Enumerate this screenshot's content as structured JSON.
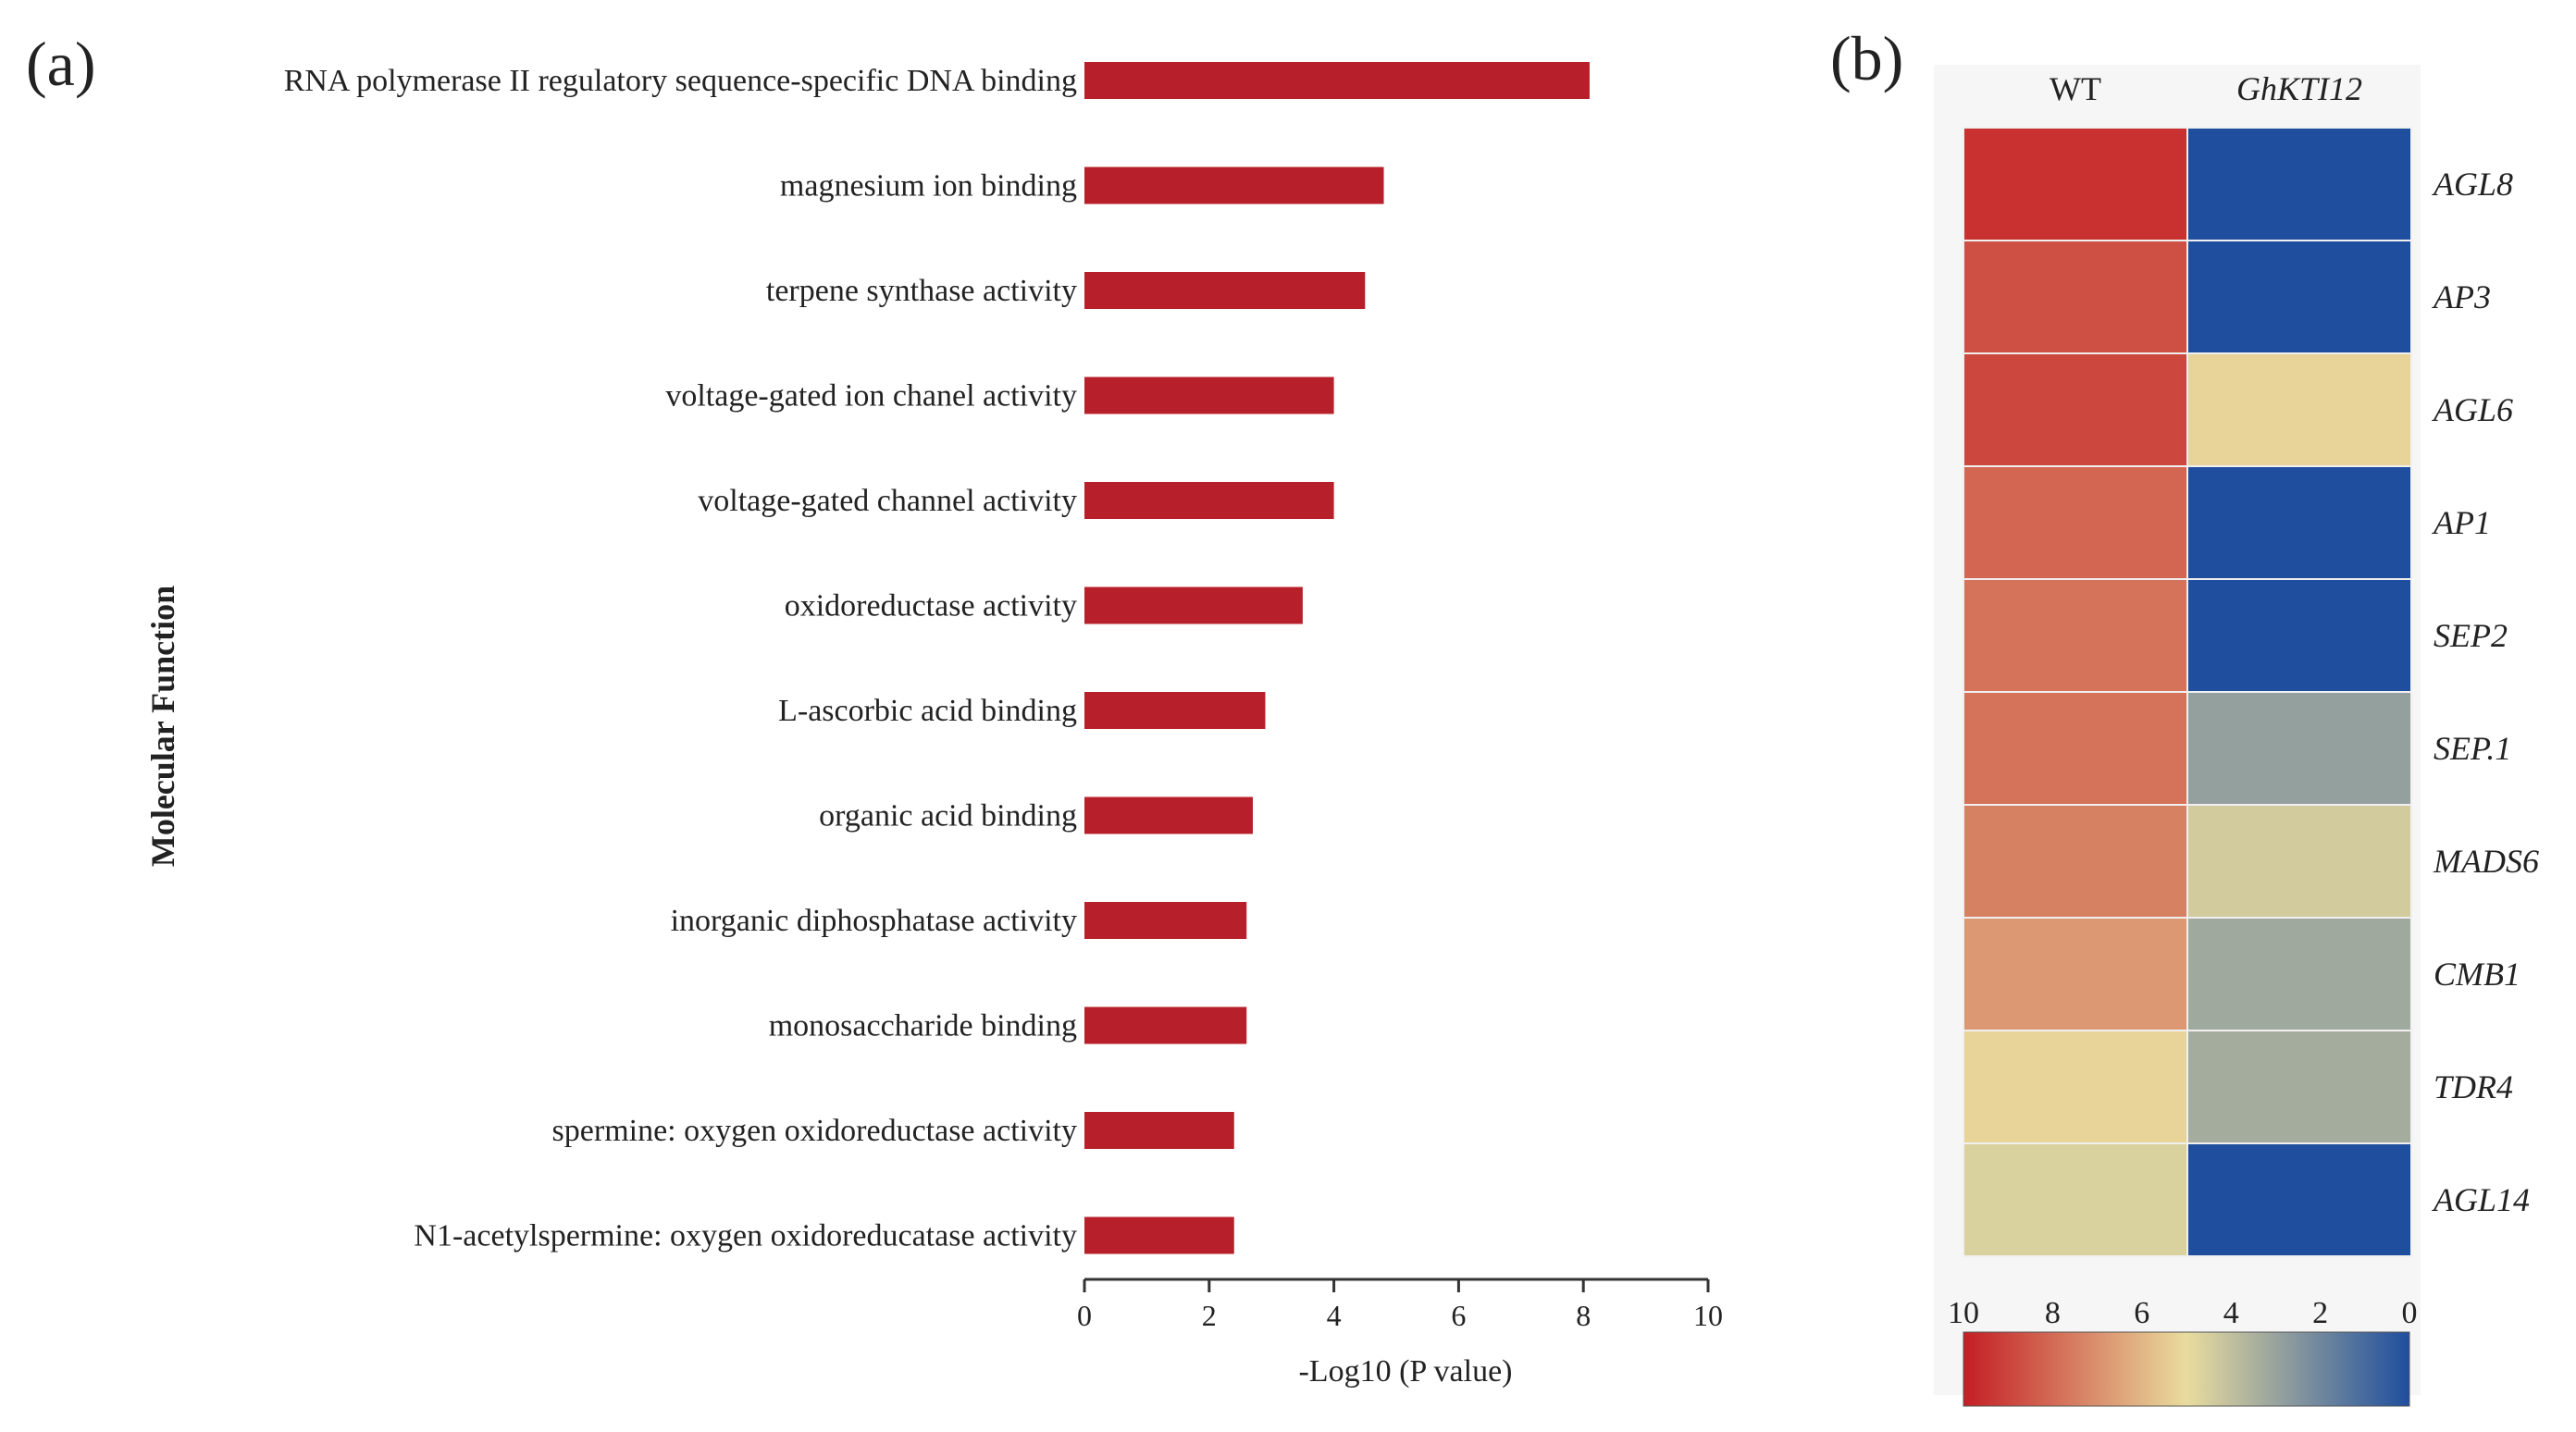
{
  "panel_a_label": "(a)",
  "panel_b_label": "(b)",
  "chart_data": [
    {
      "type": "bar",
      "orientation": "horizontal",
      "ylabel": "Molecular Function",
      "xlabel": "-Log10 (P value)",
      "xlim": [
        0,
        10
      ],
      "xticks": [
        0,
        2,
        4,
        6,
        8,
        10
      ],
      "bar_color": "#b7202a",
      "categories": [
        "RNA polymerase II regulatory sequence-specific DNA binding",
        "magnesium ion binding",
        "terpene synthase activity",
        "voltage-gated ion chanel activity",
        "voltage-gated channel activity",
        "oxidoreductase activity",
        "L-ascorbic acid binding",
        "organic acid binding",
        "inorganic diphosphatase activity",
        "monosaccharide binding",
        "spermine: oxygen oxidoreductase activity",
        "N1-acetylspermine: oxygen oxidoreducatase activity"
      ],
      "values": [
        8.1,
        4.8,
        4.5,
        4.0,
        4.0,
        3.5,
        2.9,
        2.7,
        2.6,
        2.6,
        2.4,
        2.4
      ]
    },
    {
      "type": "heatmap",
      "columns": [
        "WT",
        "GhKTI12"
      ],
      "rows": [
        "AGL8",
        "AP3",
        "AGL6",
        "AP1",
        "SEP2",
        "SEP.1",
        "MADS6",
        "CMB1",
        "TDR4",
        "AGL14"
      ],
      "values": [
        [
          9.5,
          0
        ],
        [
          8.7,
          0
        ],
        [
          8.9,
          5.2
        ],
        [
          8.1,
          0
        ],
        [
          7.8,
          0
        ],
        [
          7.8,
          2.9
        ],
        [
          7.4,
          4.4
        ],
        [
          6.8,
          3.2
        ],
        [
          5.2,
          3.3
        ],
        [
          4.6,
          0
        ]
      ],
      "scale_range": [
        10,
        0
      ],
      "scale_ticks": [
        10,
        8,
        6,
        4,
        2,
        0
      ],
      "colormap": [
        "#c41e24",
        "#e9dc9e",
        "#1f4e9e"
      ]
    }
  ]
}
